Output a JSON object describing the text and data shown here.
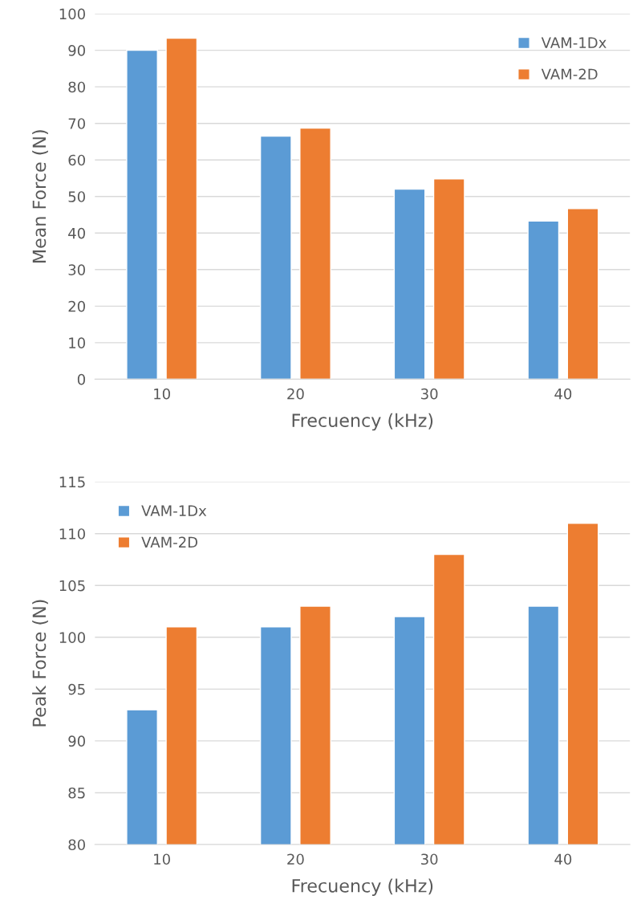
{
  "chart_data": [
    {
      "type": "bar",
      "xlabel": "Frecuency (kHz)",
      "ylabel": "Mean Force (N)",
      "categories": [
        "10",
        "20",
        "30",
        "40"
      ],
      "series": [
        {
          "name": "VAM-1Dx",
          "color": "#5b9bd5",
          "values": [
            90,
            66.5,
            52,
            43.3
          ]
        },
        {
          "name": "VAM-2D",
          "color": "#ed7d31",
          "values": [
            93.3,
            68.7,
            54.8,
            46.7
          ]
        }
      ],
      "ylim": [
        0,
        100
      ],
      "yticks": [
        0,
        10,
        20,
        30,
        40,
        50,
        60,
        70,
        80,
        90,
        100
      ],
      "grid": "y",
      "legend": "top right"
    },
    {
      "type": "bar",
      "xlabel": "Frecuency (kHz)",
      "ylabel": "Peak Force (N)",
      "categories": [
        "10",
        "20",
        "30",
        "40"
      ],
      "series": [
        {
          "name": "VAM-1Dx",
          "color": "#5b9bd5",
          "values": [
            93,
            101,
            102,
            103
          ]
        },
        {
          "name": "VAM-2D",
          "color": "#ed7d31",
          "values": [
            101,
            103,
            108,
            111
          ]
        }
      ],
      "ylim": [
        80,
        115
      ],
      "yticks": [
        80,
        85,
        90,
        95,
        100,
        105,
        110,
        115
      ],
      "grid": "y",
      "legend": "top left"
    }
  ]
}
